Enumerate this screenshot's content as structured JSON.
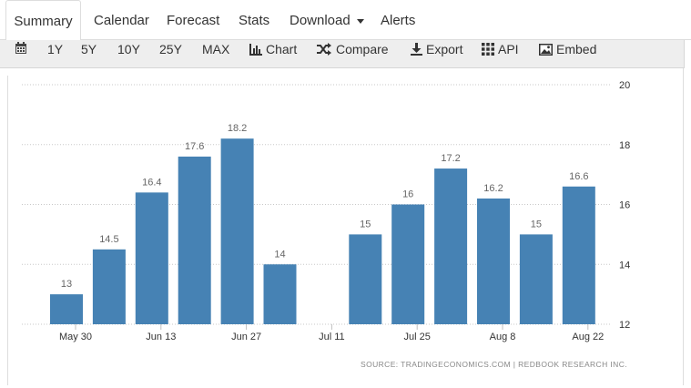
{
  "tabs": [
    {
      "label": "Summary",
      "active": true
    },
    {
      "label": "Calendar"
    },
    {
      "label": "Forecast"
    },
    {
      "label": "Stats"
    },
    {
      "label": "Download",
      "dropdown": true
    },
    {
      "label": "Alerts"
    }
  ],
  "toolbar": {
    "calendar_icon": "calendar-icon",
    "ranges": [
      "1Y",
      "5Y",
      "10Y",
      "25Y",
      "MAX"
    ],
    "chart_label": "Chart",
    "compare_label": "Compare",
    "export_label": "Export",
    "api_label": "API",
    "embed_label": "Embed"
  },
  "colors": {
    "bar": "#4682b4",
    "grid": "#c8c8c8",
    "value_label": "#666666"
  },
  "chart_data": {
    "type": "bar",
    "title": "",
    "xlabel": "",
    "ylabel": "",
    "ylim": [
      12,
      20
    ],
    "yticks": [
      "12",
      "14",
      "16",
      "18",
      "20"
    ],
    "y_axis_side": "right",
    "grid": true,
    "xtick_labels": [
      "May 30",
      "Jun 13",
      "Jun 27",
      "Jul 11",
      "Jul 25",
      "Aug 8",
      "Aug 22"
    ],
    "values": [
      13,
      14.5,
      16.4,
      17.6,
      18.2,
      14,
      null,
      15,
      16,
      17.2,
      16.2,
      15,
      16.6
    ],
    "value_labels": [
      "13",
      "14.5",
      "16.4",
      "17.6",
      "18.2",
      "14",
      "",
      "15",
      "16",
      "17.2",
      "16.2",
      "15",
      "16.6"
    ],
    "source": "SOURCE: TRADINGECONOMICS.COM | REDBOOK RESEARCH INC."
  }
}
